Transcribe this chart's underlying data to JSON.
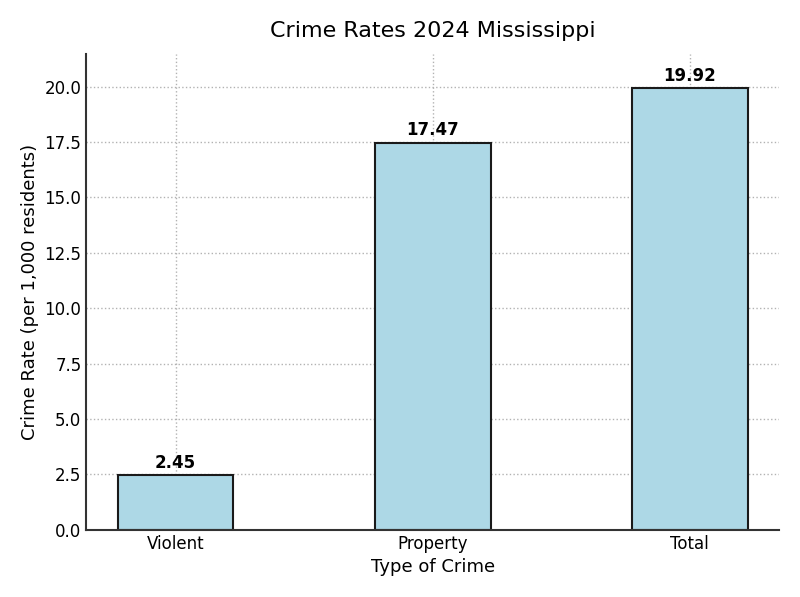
{
  "title": "Crime Rates 2024 Mississippi",
  "xlabel": "Type of Crime",
  "ylabel": "Crime Rate (per 1,000 residents)",
  "categories": [
    "Violent",
    "Property",
    "Total"
  ],
  "values": [
    2.45,
    17.47,
    19.92
  ],
  "bar_color": "#add8e6",
  "bar_edgecolor": "#1a1a1a",
  "bar_linewidth": 1.5,
  "bar_width": 0.45,
  "ylim": [
    0,
    21.5
  ],
  "yticks": [
    0.0,
    2.5,
    5.0,
    7.5,
    10.0,
    12.5,
    15.0,
    17.5,
    20.0
  ],
  "grid_color": "#aaaaaa",
  "grid_linestyle": ":",
  "grid_alpha": 0.9,
  "grid_linewidth": 1.0,
  "title_fontsize": 16,
  "label_fontsize": 13,
  "tick_fontsize": 12,
  "annotation_fontsize": 12,
  "background_color": "#ffffff",
  "left_spine_color": "#333333",
  "bottom_spine_color": "#333333"
}
